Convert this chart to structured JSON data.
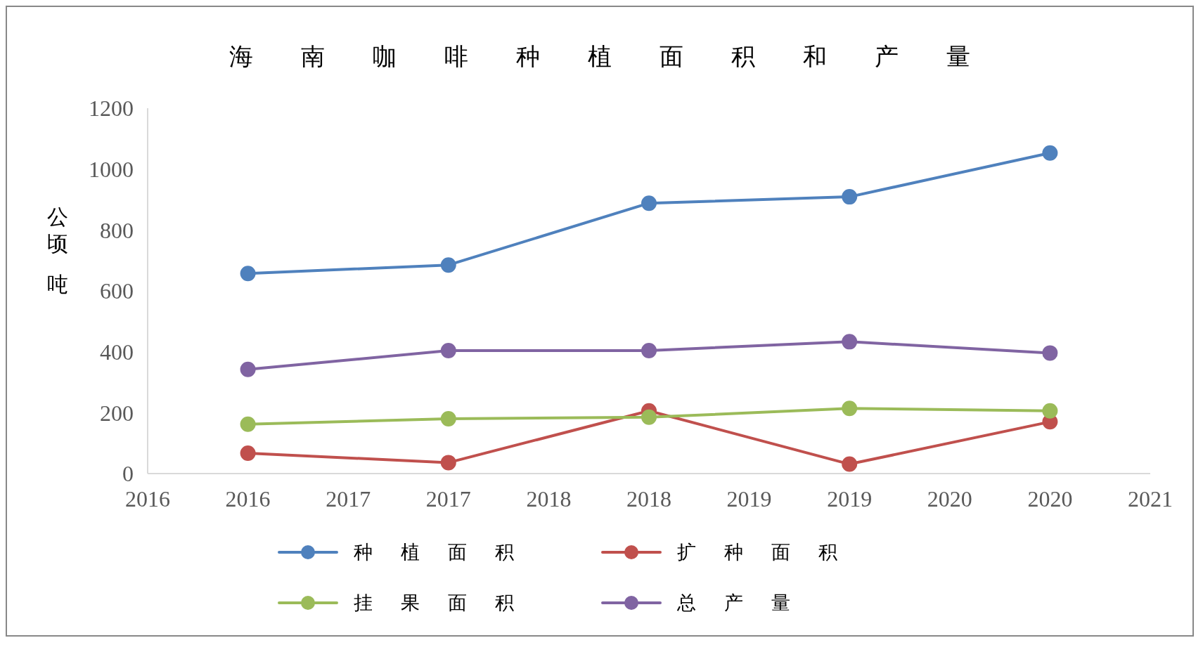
{
  "chart_data": {
    "type": "line",
    "title": "海南咖啡种植面积和产量",
    "ylabel": "公顷吨",
    "x": [
      2016.5,
      2017.5,
      2018.5,
      2019.5,
      2020.5
    ],
    "xlim": [
      2016,
      2021
    ],
    "xticks": [
      2016,
      {
        "value": 2016.5,
        "label": "2016"
      },
      2017,
      {
        "value": 2017.5,
        "label": "2017"
      },
      2018,
      {
        "value": 2018.5,
        "label": "2018"
      },
      2019,
      {
        "value": 2019.5,
        "label": "2019"
      },
      2020,
      {
        "value": 2020.5,
        "label": "2020"
      },
      2021
    ],
    "ylim": [
      0,
      1200
    ],
    "yticks": [
      0,
      200,
      400,
      600,
      800,
      1000,
      1200
    ],
    "series": [
      {
        "name": "种植面积",
        "color": "#4f81bd",
        "values": [
          657,
          685,
          888,
          909,
          1053
        ]
      },
      {
        "name": "扩种面积",
        "color": "#c0504d",
        "values": [
          67,
          36,
          206,
          31,
          170
        ]
      },
      {
        "name": "挂果面积",
        "color": "#9bbb59",
        "values": [
          162,
          180,
          185,
          214,
          206
        ]
      },
      {
        "name": "总产量",
        "color": "#8064a2",
        "values": [
          342,
          404,
          404,
          433,
          396
        ]
      }
    ],
    "grid": false,
    "legend": "bottom",
    "marker": "circle",
    "line_style": "solid"
  }
}
